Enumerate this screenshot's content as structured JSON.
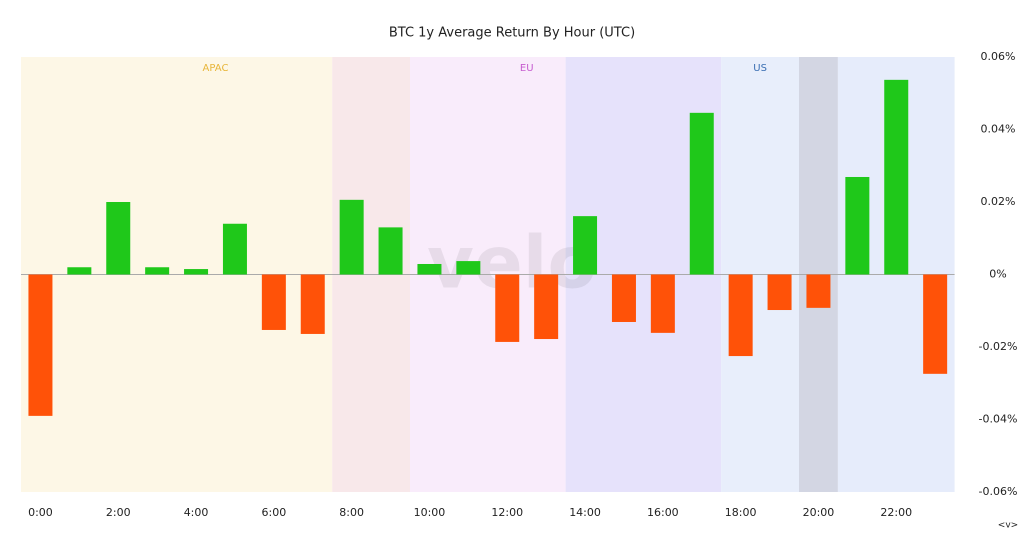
{
  "chart_data": {
    "type": "bar",
    "title": "BTC 1y Average Return By Hour (UTC)",
    "categories": [
      "0:00",
      null,
      "2:00",
      null,
      "4:00",
      null,
      "6:00",
      null,
      "8:00",
      null,
      "10:00",
      null,
      "12:00",
      null,
      "14:00",
      null,
      "16:00",
      null,
      "18:00",
      null,
      "20:00",
      null,
      "22:00",
      null
    ],
    "values": [
      -0.039,
      0.002,
      0.02,
      0.002,
      0.0015,
      0.014,
      -0.0153,
      -0.0164,
      0.0206,
      0.013,
      0.0029,
      0.0037,
      -0.0186,
      -0.0178,
      0.0161,
      -0.0131,
      -0.0161,
      0.0446,
      -0.0225,
      -0.0098,
      -0.0092,
      0.0269,
      0.0537,
      -0.0274
    ],
    "positive_color": "#1fc81a",
    "negative_color": "#ff5208",
    "ylim": [
      -0.06,
      0.06
    ],
    "yticks": [
      {
        "value": -0.06,
        "label": "-0.06%"
      },
      {
        "value": -0.04,
        "label": "-0.04%"
      },
      {
        "value": -0.02,
        "label": "-0.02%"
      },
      {
        "value": 0,
        "label": "0%"
      },
      {
        "value": 0.02,
        "label": "0.02%"
      },
      {
        "value": 0.04,
        "label": "0.04%"
      },
      {
        "value": 0.06,
        "label": "0.06%"
      }
    ],
    "regions": [
      {
        "label": "APAC",
        "start": -0.5,
        "end": 7.5,
        "color": "#fdf7e6",
        "label_color": "#e8b63a"
      },
      {
        "start": 7.5,
        "end": 9.5,
        "color": "#f8e8ea"
      },
      {
        "label": "EU",
        "start": 9.5,
        "end": 13.5,
        "color": "#f9ecfb",
        "label_color": "#c65ccf"
      },
      {
        "start": 13.5,
        "end": 17.5,
        "color": "#e6e2fb"
      },
      {
        "label": "US",
        "start": 17.5,
        "end": 19.5,
        "color": "#e8eefb",
        "label_color": "#3b6fb3"
      },
      {
        "start": 19.5,
        "end": 20.5,
        "color": "#d3d6e3"
      },
      {
        "start": 20.5,
        "end": 23.5,
        "color": "#e6ecfb"
      }
    ],
    "watermark": "velo",
    "menu": "<v>"
  }
}
